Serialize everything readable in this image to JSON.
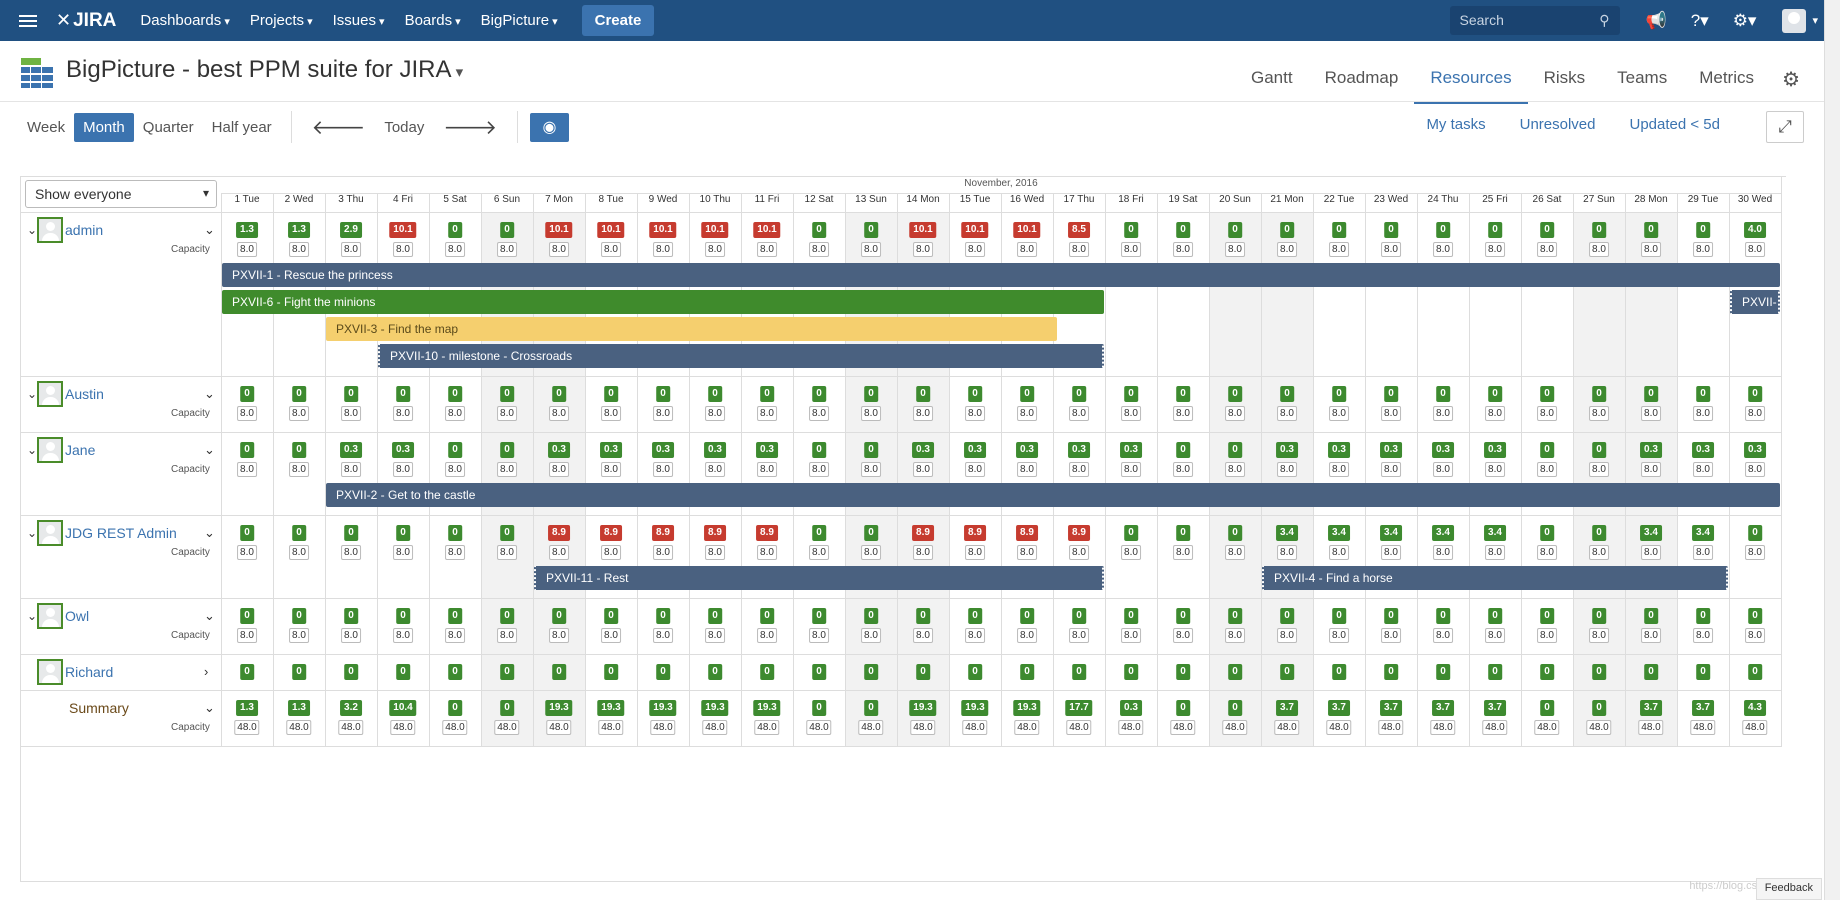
{
  "topnav": {
    "logo": "JIRA",
    "items": [
      "Dashboards",
      "Projects",
      "Issues",
      "Boards",
      "BigPicture"
    ],
    "create_label": "Create",
    "search_placeholder": "Search"
  },
  "header": {
    "title": "BigPicture - best PPM suite for JIRA",
    "tabs": [
      "Gantt",
      "Roadmap",
      "Resources",
      "Risks",
      "Teams",
      "Metrics"
    ],
    "active_tab": "Resources"
  },
  "toolbar": {
    "views": [
      "Week",
      "Month",
      "Quarter",
      "Half year"
    ],
    "active_view": "Month",
    "today_label": "Today",
    "filters": [
      "My tasks",
      "Unresolved",
      "Updated < 5d"
    ]
  },
  "grid": {
    "filter_select": "Show everyone",
    "month_label": "November, 2016",
    "days": [
      "1 Tue",
      "2 Wed",
      "3 Thu",
      "4 Fri",
      "5 Sat",
      "6 Sun",
      "7 Mon",
      "8 Tue",
      "9 Wed",
      "10 Thu",
      "11 Fri",
      "12 Sat",
      "13 Sun",
      "14 Mon",
      "15 Tue",
      "16 Wed",
      "17 Thu",
      "18 Fri",
      "19 Sat",
      "20 Sun",
      "21 Mon",
      "22 Tue",
      "23 Wed",
      "24 Thu",
      "25 Fri",
      "26 Sat",
      "27 Sun",
      "28 Mon",
      "29 Tue",
      "30 Wed"
    ],
    "weekend_days": [
      5,
      6,
      12,
      13,
      19,
      20,
      26,
      27
    ],
    "capacity_label": "Capacity",
    "users": [
      {
        "name": "admin",
        "expanded": true,
        "load": [
          "1.3",
          "1.3",
          "2.9",
          "10.1",
          "0",
          "0",
          "10.1",
          "10.1",
          "10.1",
          "10.1",
          "10.1",
          "0",
          "0",
          "10.1",
          "10.1",
          "10.1",
          "8.5",
          "0",
          "0",
          "0",
          "0",
          "0",
          "0",
          "0",
          "0",
          "0",
          "0",
          "0",
          "0",
          "4.0"
        ],
        "over": [
          3,
          6,
          7,
          8,
          9,
          10,
          13,
          14,
          15,
          16
        ],
        "capacity": "8.0",
        "tasks": [
          {
            "label": "PXVII-1 - Rescue the princess",
            "start": 0,
            "end": 30,
            "color": "blue",
            "lane": 0
          },
          {
            "label": "PXVII-6 - Fight the minions",
            "start": 0,
            "end": 17,
            "color": "green",
            "lane": 1
          },
          {
            "label": "PXVII-",
            "start": 29,
            "end": 30,
            "color": "blue",
            "lane": 1,
            "dashed": true
          },
          {
            "label": "PXVII-3 - Find the map",
            "start": 2,
            "end": 16.1,
            "color": "yellow",
            "lane": 2
          },
          {
            "label": "PXVII-10 - milestone - Crossroads",
            "start": 3,
            "end": 17,
            "color": "blue",
            "lane": 3,
            "dashed": true
          }
        ]
      },
      {
        "name": "Austin",
        "expanded": true,
        "load": [
          "0",
          "0",
          "0",
          "0",
          "0",
          "0",
          "0",
          "0",
          "0",
          "0",
          "0",
          "0",
          "0",
          "0",
          "0",
          "0",
          "0",
          "0",
          "0",
          "0",
          "0",
          "0",
          "0",
          "0",
          "0",
          "0",
          "0",
          "0",
          "0",
          "0"
        ],
        "over": [],
        "capacity": "8.0",
        "tasks": []
      },
      {
        "name": "Jane",
        "expanded": true,
        "load": [
          "0",
          "0",
          "0.3",
          "0.3",
          "0",
          "0",
          "0.3",
          "0.3",
          "0.3",
          "0.3",
          "0.3",
          "0",
          "0",
          "0.3",
          "0.3",
          "0.3",
          "0.3",
          "0.3",
          "0",
          "0",
          "0.3",
          "0.3",
          "0.3",
          "0.3",
          "0.3",
          "0",
          "0",
          "0.3",
          "0.3",
          "0.3"
        ],
        "over": [],
        "capacity": "8.0",
        "tasks": [
          {
            "label": "PXVII-2 - Get to the castle",
            "start": 2,
            "end": 30,
            "color": "blue",
            "lane": 0
          }
        ]
      },
      {
        "name": "JDG REST Admin",
        "expanded": true,
        "load": [
          "0",
          "0",
          "0",
          "0",
          "0",
          "0",
          "8.9",
          "8.9",
          "8.9",
          "8.9",
          "8.9",
          "0",
          "0",
          "8.9",
          "8.9",
          "8.9",
          "8.9",
          "0",
          "0",
          "0",
          "3.4",
          "3.4",
          "3.4",
          "3.4",
          "3.4",
          "0",
          "0",
          "3.4",
          "3.4",
          "0"
        ],
        "over": [
          6,
          7,
          8,
          9,
          10,
          13,
          14,
          15,
          16
        ],
        "capacity": "8.0",
        "tasks": [
          {
            "label": "PXVII-11 - Rest",
            "start": 6,
            "end": 17,
            "color": "blue",
            "lane": 0,
            "dashed": true
          },
          {
            "label": "PXVII-4 - Find a horse",
            "start": 20,
            "end": 29,
            "color": "blue",
            "lane": 0,
            "dashed": true
          }
        ]
      },
      {
        "name": "Owl",
        "expanded": true,
        "load": [
          "0",
          "0",
          "0",
          "0",
          "0",
          "0",
          "0",
          "0",
          "0",
          "0",
          "0",
          "0",
          "0",
          "0",
          "0",
          "0",
          "0",
          "0",
          "0",
          "0",
          "0",
          "0",
          "0",
          "0",
          "0",
          "0",
          "0",
          "0",
          "0",
          "0"
        ],
        "over": [],
        "capacity": "8.0",
        "tasks": []
      },
      {
        "name": "Richard",
        "expanded": false,
        "load": [
          "0",
          "0",
          "0",
          "0",
          "0",
          "0",
          "0",
          "0",
          "0",
          "0",
          "0",
          "0",
          "0",
          "0",
          "0",
          "0",
          "0",
          "0",
          "0",
          "0",
          "0",
          "0",
          "0",
          "0",
          "0",
          "0",
          "0",
          "0",
          "0",
          "0"
        ],
        "over": [],
        "capacity": null,
        "tasks": []
      }
    ],
    "summary": {
      "name": "Summary",
      "load": [
        "1.3",
        "1.3",
        "3.2",
        "10.4",
        "0",
        "0",
        "19.3",
        "19.3",
        "19.3",
        "19.3",
        "19.3",
        "0",
        "0",
        "19.3",
        "19.3",
        "19.3",
        "17.7",
        "0.3",
        "0",
        "0",
        "3.7",
        "3.7",
        "3.7",
        "3.7",
        "3.7",
        "0",
        "0",
        "3.7",
        "3.7",
        "4.3"
      ],
      "capacity": "48.0"
    }
  },
  "footer": {
    "watermark": "https://blog.csdn.net/...",
    "feedback": "Feedback"
  },
  "colors": {
    "nav": "#205081",
    "accent": "#3b73af",
    "ok": "#3d8a2f",
    "over": "#c63b2f",
    "bar": "#4a6180"
  }
}
